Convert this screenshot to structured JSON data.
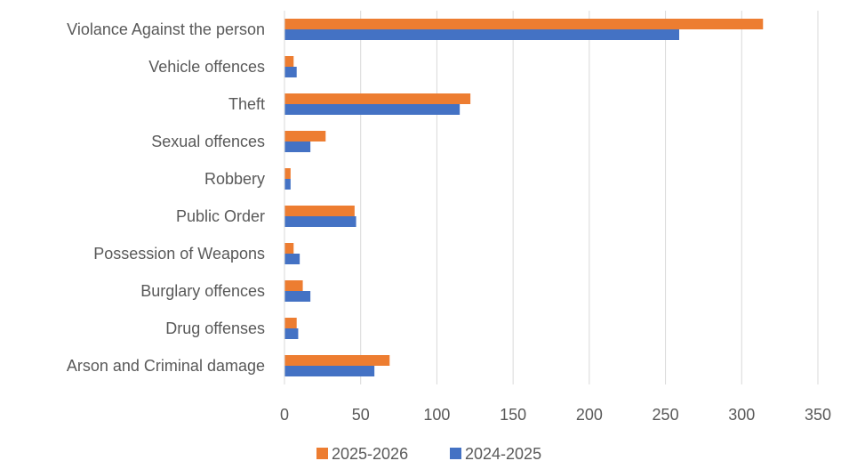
{
  "chart_data": {
    "type": "bar",
    "orientation": "horizontal",
    "categories": [
      "Violance Against the person",
      "Vehicle offences",
      "Theft",
      "Sexual offences",
      "Robbery",
      "Public Order",
      "Possession of Weapons",
      "Burglary offences",
      "Drug offenses",
      "Arson and Criminal damage"
    ],
    "series": [
      {
        "name": "2025-2026",
        "color": "#ED7D31",
        "values": [
          314,
          6,
          122,
          27,
          4,
          46,
          6,
          12,
          8,
          69
        ]
      },
      {
        "name": "2024-2025",
        "color": "#4472C4",
        "values": [
          259,
          8,
          115,
          17,
          4,
          47,
          10,
          17,
          9,
          59
        ]
      }
    ],
    "xlim": [
      0,
      350
    ],
    "xticks": [
      "0",
      "50",
      "100",
      "150",
      "200",
      "250",
      "300",
      "350"
    ],
    "grid": true,
    "legend_position": "bottom"
  }
}
